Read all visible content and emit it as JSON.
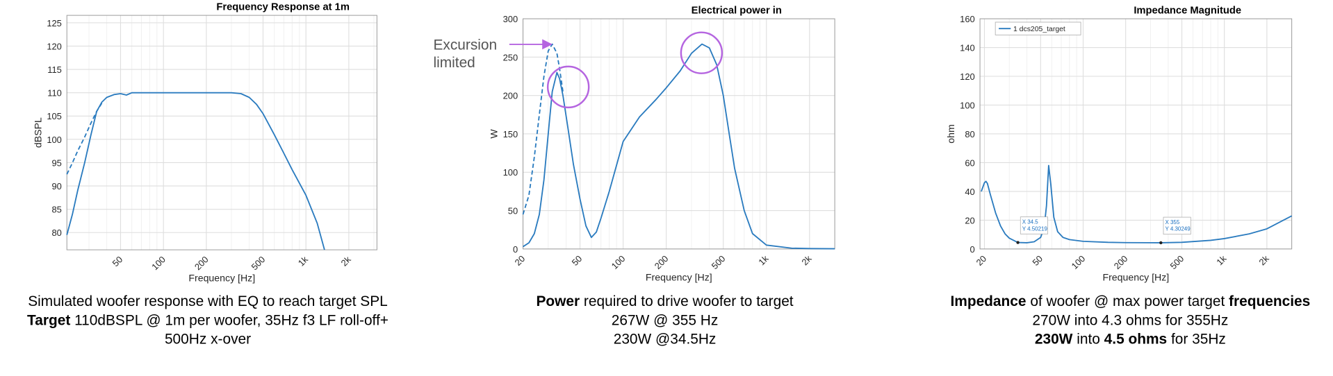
{
  "chart_data": [
    {
      "type": "line",
      "title": "Frequency Response at 1m",
      "xlabel": "Frequency [Hz]",
      "ylabel": "dBSPL",
      "xscale": "log",
      "grid": true,
      "x": [
        21,
        23,
        25,
        28,
        31,
        34,
        37,
        40,
        45,
        50,
        55,
        60,
        70,
        100,
        200,
        300,
        350,
        400,
        450,
        500,
        600,
        700,
        800,
        1000,
        1200,
        1350
      ],
      "series": [
        {
          "color": "#2a7bbf",
          "style": "solid",
          "values": [
            79.5,
            84,
            89,
            95,
            101,
            106,
            108,
            109,
            109.6,
            109.8,
            109.5,
            110,
            110,
            110,
            110,
            110,
            109.8,
            109,
            107.5,
            105.5,
            101,
            97,
            93.5,
            88,
            82,
            76.3
          ]
        },
        {
          "color": "#2a7bbf",
          "style": "dashed",
          "values": [
            92.5,
            95,
            97.5,
            100.5,
            103.5,
            106,
            107.8,
            null,
            null,
            null,
            null,
            null,
            null,
            null,
            null,
            null,
            null,
            null,
            null,
            null,
            null,
            null,
            null,
            null,
            null,
            null
          ]
        }
      ],
      "xlim": [
        21,
        3150
      ],
      "ylim": [
        76.3,
        126.6
      ],
      "xticks": [
        50,
        100,
        200,
        500,
        {
          "value": 1000,
          "label": "1k"
        },
        {
          "value": 2000,
          "label": "2k"
        }
      ],
      "xminorticks": [
        30,
        40,
        60,
        70,
        80,
        90,
        300,
        400,
        600,
        700,
        800,
        900,
        3000
      ],
      "yticks": [
        80,
        85,
        90,
        95,
        100,
        105,
        110,
        115,
        120,
        125
      ]
    },
    {
      "type": "line",
      "title": "Electrical power in",
      "xlabel": "Frequency [Hz]",
      "ylabel": "W",
      "xscale": "log",
      "grid": true,
      "x": [
        20,
        22,
        24,
        26,
        28,
        30,
        32,
        34.5,
        36,
        38,
        41,
        45,
        50,
        55,
        60,
        65,
        70,
        80,
        100,
        130,
        170,
        200,
        250,
        300,
        355,
        400,
        450,
        500,
        550,
        600,
        700,
        800,
        1000,
        1500,
        2000,
        3000
      ],
      "series": [
        {
          "color": "#2a7bbf",
          "style": "solid",
          "values": [
            3,
            8,
            20,
            45,
            90,
            150,
            205,
            230,
            222,
            200,
            160,
            110,
            65,
            30,
            15,
            22,
            40,
            75,
            140,
            172,
            195,
            210,
            232,
            255,
            267,
            262,
            240,
            200,
            150,
            105,
            50,
            20,
            5,
            1,
            0.5,
            0.3
          ]
        },
        {
          "color": "#2a7bbf",
          "style": "dashed",
          "values": [
            45,
            70,
            120,
            175,
            225,
            258,
            267,
            255,
            235,
            205,
            null,
            null,
            null,
            null,
            null,
            null,
            null,
            null,
            null,
            null,
            null,
            null,
            null,
            null,
            null,
            null,
            null,
            null,
            null,
            null,
            null,
            null,
            null,
            null,
            null,
            null
          ]
        }
      ],
      "xlim": [
        20,
        3000
      ],
      "ylim": [
        0,
        300
      ],
      "xticks": [
        20,
        50,
        100,
        200,
        500,
        {
          "value": 1000,
          "label": "1k"
        },
        {
          "value": 2000,
          "label": "2k"
        }
      ],
      "xminorticks": [
        30,
        40,
        60,
        70,
        80,
        90,
        300,
        400,
        600,
        700,
        800,
        900,
        3000
      ],
      "yticks": [
        0,
        50,
        100,
        150,
        200,
        250,
        300
      ],
      "annotation": [
        "Excursion",
        "limited"
      ]
    },
    {
      "type": "line",
      "title": "Impedance Magnitude",
      "xlabel": "Frequency [Hz]",
      "ylabel": "ohm",
      "xscale": "log",
      "grid": true,
      "legend": "upper left",
      "x": [
        19,
        20,
        20.5,
        21,
        22,
        24,
        26,
        28,
        30,
        34.5,
        40,
        45,
        50,
        53,
        55,
        57,
        59,
        62,
        66,
        72,
        80,
        100,
        150,
        200,
        355,
        500,
        800,
        1000,
        1500,
        2000,
        3000
      ],
      "series": [
        {
          "name": "1 dcs205_target",
          "color": "#2a7bbf",
          "style": "solid",
          "values": [
            40,
            46,
            47,
            45.5,
            38,
            25,
            16,
            10.5,
            7.5,
            4.5,
            4.3,
            5,
            8,
            15,
            30,
            58,
            45,
            22,
            12,
            8,
            6.5,
            5.3,
            4.6,
            4.4,
            4.3,
            4.6,
            6,
            7.2,
            10.5,
            14,
            23
          ]
        }
      ],
      "xlim": [
        18.6,
        3000
      ],
      "ylim": [
        0,
        160
      ],
      "xticks": [
        20,
        50,
        100,
        200,
        500,
        {
          "value": 1000,
          "label": "1k"
        },
        {
          "value": 2000,
          "label": "2k"
        }
      ],
      "xminorticks": [
        30,
        40,
        60,
        70,
        80,
        90,
        300,
        400,
        600,
        700,
        800,
        900,
        3000
      ],
      "yticks": [
        0,
        20,
        40,
        60,
        80,
        100,
        120,
        140,
        160
      ],
      "datatips": [
        {
          "x": 34.5,
          "y": 4.50219,
          "x_label": "X 34.5",
          "y_label": "Y 4.50219"
        },
        {
          "x": 355,
          "y": 4.30249,
          "x_label": "X 355",
          "y_label": "Y 4.30249"
        }
      ]
    }
  ],
  "captions": [
    [
      [
        {
          "text": "Simulated woofer response with EQ to reach target SPL",
          "bold": false
        }
      ],
      [
        {
          "text": "Target",
          "bold": true
        },
        {
          "text": " 110dBSPL @ 1m per woofer, 35Hz f3 LF roll-off+",
          "bold": false
        }
      ],
      [
        {
          "text": "500Hz x-over",
          "bold": false
        }
      ]
    ],
    [
      [
        {
          "text": "Power",
          "bold": true
        },
        {
          "text": " required to drive woofer to target",
          "bold": false
        }
      ],
      [
        {
          "text": "267W @ 355 Hz",
          "bold": false
        }
      ],
      [
        {
          "text": "230W @34.5Hz",
          "bold": false
        }
      ]
    ],
    [
      [
        {
          "text": "Impedance",
          "bold": true
        },
        {
          "text": " of woofer @ max power target ",
          "bold": false
        },
        {
          "text": "frequencies",
          "bold": true
        }
      ],
      [
        {
          "text": "270W into 4.3 ohms for 355Hz",
          "bold": false
        }
      ],
      [
        {
          "text": "230W",
          "bold": true
        },
        {
          "text": " into ",
          "bold": false
        },
        {
          "text": "4.5 ohms",
          "bold": true
        },
        {
          "text": " for 35Hz",
          "bold": false
        }
      ]
    ]
  ]
}
